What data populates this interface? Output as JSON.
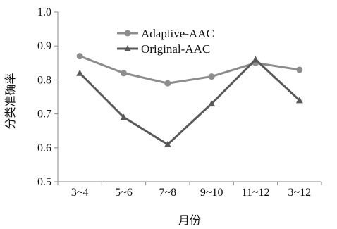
{
  "chart_data": {
    "type": "line",
    "title": "",
    "xlabel": "月份",
    "ylabel": "分类准确率",
    "categories": [
      "3~4",
      "5~6",
      "7~8",
      "9~10",
      "11~12",
      "3~12"
    ],
    "ylim": [
      0.5,
      1.0
    ],
    "yticks": [
      "0.5",
      "0.6",
      "0.7",
      "0.8",
      "0.9",
      "1.0"
    ],
    "grid": false,
    "legend_position": "top-left",
    "series": [
      {
        "name": "Adaptive-AAC",
        "marker": "circle",
        "color": "#8c8c8c",
        "values": [
          0.87,
          0.82,
          0.79,
          0.81,
          0.85,
          0.83
        ]
      },
      {
        "name": "Original-AAC",
        "marker": "triangle",
        "color": "#595959",
        "values": [
          0.82,
          0.69,
          0.61,
          0.73,
          0.86,
          0.74
        ]
      }
    ]
  }
}
